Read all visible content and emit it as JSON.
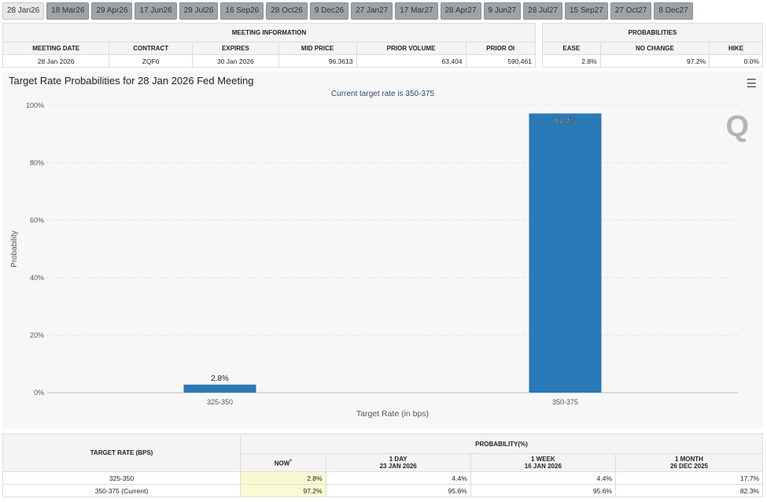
{
  "tabs": [
    "28 Jan26",
    "18 Mar26",
    "29 Apr26",
    "17 Jun26",
    "29 Jul26",
    "16 Sep26",
    "28 Oct26",
    "9 Dec26",
    "27 Jan27",
    "17 Mar27",
    "28 Apr27",
    "9 Jun27",
    "28 Jul27",
    "15 Sep27",
    "27 Oct27",
    "8 Dec27"
  ],
  "active_tab": 0,
  "meeting_info": {
    "title": "MEETING INFORMATION",
    "headers": [
      "MEETING DATE",
      "CONTRACT",
      "EXPIRES",
      "MID PRICE",
      "PRIOR VOLUME",
      "PRIOR OI"
    ],
    "values": [
      "28 Jan 2026",
      "ZQF6",
      "30 Jan 2026",
      "96.3613",
      "63,404",
      "590,461"
    ]
  },
  "probabilities": {
    "title": "PROBABILITIES",
    "headers": [
      "EASE",
      "NO CHANGE",
      "HIKE"
    ],
    "values": [
      "2.8%",
      "97.2%",
      "0.0%"
    ]
  },
  "chart_data": {
    "type": "bar",
    "title": "Target Rate Probabilities for 28 Jan 2026 Fed Meeting",
    "subtitle": "Current target rate is 350-375",
    "xlabel": "Target Rate (in bps)",
    "ylabel": "Probability",
    "categories": [
      "325-350",
      "350-375"
    ],
    "values": [
      2.8,
      97.2
    ],
    "data_labels": [
      "2.8%",
      "97.2%"
    ],
    "ylim": [
      0,
      100
    ],
    "yticks": [
      "0%",
      "20%",
      "40%",
      "60%",
      "80%",
      "100%"
    ],
    "grid": true,
    "bar_color": "#2a7ab8",
    "logo": "Q"
  },
  "bottom_table": {
    "rate_header": "TARGET RATE (BPS)",
    "prob_header": "PROBABILITY(%)",
    "cols": [
      {
        "l1": "NOW",
        "l2": "*"
      },
      {
        "l1": "1 DAY",
        "l2": "23 JAN 2026"
      },
      {
        "l1": "1 WEEK",
        "l2": "16 JAN 2026"
      },
      {
        "l1": "1 MONTH",
        "l2": "26 DEC 2025"
      }
    ],
    "rows": [
      {
        "rate": "325-350",
        "vals": [
          "2.8%",
          "4.4%",
          "4.4%",
          "17.7%"
        ]
      },
      {
        "rate": "350-375 (Current)",
        "vals": [
          "97.2%",
          "95.6%",
          "95.6%",
          "82.3%"
        ]
      }
    ]
  }
}
